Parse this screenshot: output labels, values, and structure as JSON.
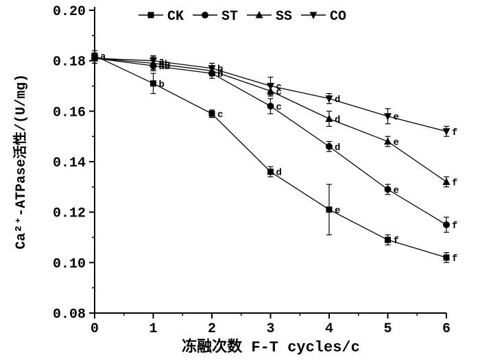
{
  "page": {
    "background": "#ffffff",
    "axis_color": "#000000",
    "series_color": "#000000"
  },
  "chart_data": {
    "type": "line",
    "title": "",
    "xlabel": "冻融次数 F-T cycles/c",
    "ylabel": "Ca²⁺-ATPase活性/(U/mg)",
    "x": [
      0,
      1,
      2,
      3,
      4,
      5,
      6
    ],
    "xlim": [
      0,
      6
    ],
    "ylim": [
      0.08,
      0.2
    ],
    "xticks": [
      0,
      1,
      2,
      3,
      4,
      5,
      6
    ],
    "yticks": [
      0.08,
      0.1,
      0.12,
      0.14,
      0.16,
      0.18,
      0.2
    ],
    "grid": false,
    "legend_position": "top-center",
    "series": [
      {
        "name": "CK",
        "marker": "square",
        "values": [
          0.182,
          0.171,
          0.159,
          0.136,
          0.121,
          0.109,
          0.102
        ],
        "errors": [
          0.002,
          0.004,
          0.0015,
          0.002,
          0.01,
          0.002,
          0.002
        ],
        "labels": [
          "a",
          "b",
          "c",
          "d",
          "e",
          "f",
          "f"
        ]
      },
      {
        "name": "ST",
        "marker": "circle",
        "values": [
          0.181,
          0.178,
          0.175,
          0.162,
          0.146,
          0.129,
          0.115
        ],
        "errors": [
          0.002,
          0.002,
          0.002,
          0.003,
          0.002,
          0.002,
          0.003
        ],
        "labels": [
          "",
          "ab",
          "b",
          "c",
          "d",
          "e",
          "f"
        ]
      },
      {
        "name": "SS",
        "marker": "triangle-up",
        "values": [
          0.181,
          0.179,
          0.176,
          0.168,
          0.157,
          0.148,
          0.132
        ],
        "errors": [
          0.002,
          0.0025,
          0.002,
          0.002,
          0.003,
          0.002,
          0.002
        ],
        "labels": [
          "",
          "ab",
          "b",
          "c",
          "d",
          "e",
          "f"
        ]
      },
      {
        "name": "CO",
        "marker": "triangle-down",
        "values": [
          0.181,
          0.18,
          0.177,
          0.17,
          0.165,
          0.158,
          0.152
        ],
        "errors": [
          0.002,
          0.002,
          0.002,
          0.0035,
          0.002,
          0.003,
          0.002
        ],
        "labels": [
          "",
          "a",
          "b",
          "c",
          "d",
          "e",
          "f"
        ]
      }
    ]
  }
}
